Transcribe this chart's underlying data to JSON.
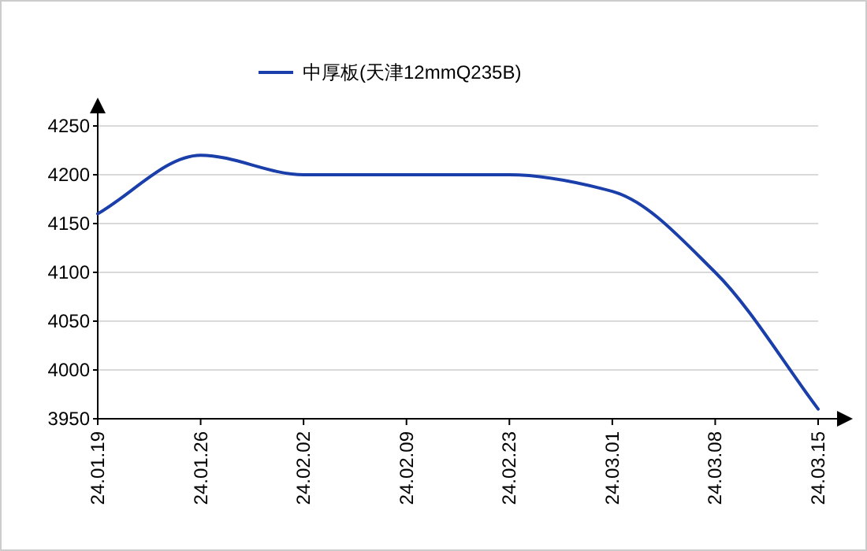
{
  "chart_data": {
    "type": "line",
    "categories": [
      "24.01.19",
      "24.01.26",
      "24.02.02",
      "24.02.09",
      "24.02.23",
      "24.03.01",
      "24.03.08",
      "24.03.15"
    ],
    "series": [
      {
        "name": "中厚板(天津12mmQ235B)",
        "color": "#1a3eaa",
        "values": [
          4160,
          4220,
          4200,
          4200,
          4200,
          4183,
          4100,
          3960
        ]
      }
    ],
    "ylim": [
      3950,
      4250
    ],
    "yticks": [
      3950,
      4000,
      4050,
      4100,
      4150,
      4200,
      4250
    ],
    "grid": "y",
    "legend": "top",
    "marker": "none",
    "line_style": "solid"
  }
}
